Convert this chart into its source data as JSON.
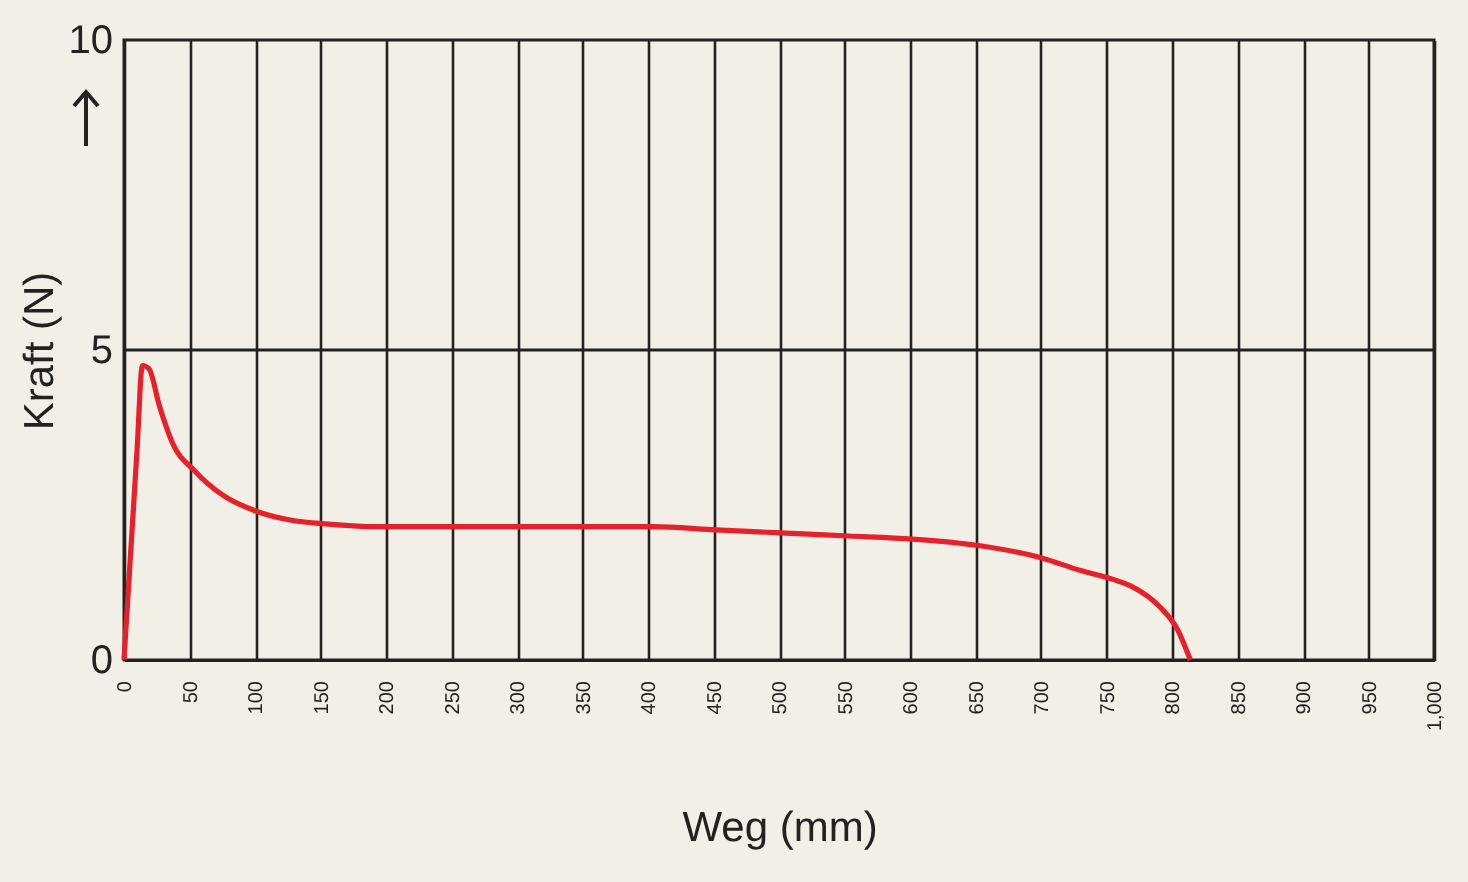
{
  "chart_data": {
    "type": "line",
    "xlabel": "Weg (mm)",
    "ylabel": "Kraft (N)",
    "xlim": [
      0,
      1000
    ],
    "xticks": [
      0,
      50,
      100,
      150,
      200,
      250,
      300,
      350,
      400,
      450,
      500,
      550,
      600,
      650,
      700,
      750,
      800,
      850,
      900,
      950,
      {
        "value": 1000,
        "label": "1,000"
      }
    ],
    "ylim": [
      0,
      10
    ],
    "yticks": [
      0,
      5,
      10
    ],
    "grid": "x",
    "ref_lines": [
      {
        "axis": "y",
        "value": 5,
        "color": "#222222"
      }
    ],
    "series": [
      {
        "color": "#e8202a",
        "x": [
          0,
          10,
          14,
          19,
          27,
          37,
          54,
          76,
          101,
          129,
          151,
          194,
          253,
          350,
          403,
          452,
          501,
          553,
          602,
          651,
          700,
          729,
          755,
          768,
          791,
          804,
          814
        ],
        "values": [
          0,
          3.4,
          4.75,
          4.7,
          4.1,
          3.5,
          3.05,
          2.65,
          2.4,
          2.25,
          2.2,
          2.15,
          2.15,
          2.15,
          2.15,
          2.1,
          2.05,
          2,
          1.95,
          1.85,
          1.65,
          1.45,
          1.3,
          1.2,
          0.85,
          0.5,
          0
        ]
      }
    ]
  }
}
